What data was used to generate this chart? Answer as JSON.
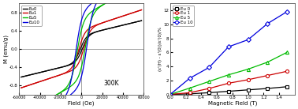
{
  "left": {
    "title": "300K",
    "xlabel": "Field (Oe)",
    "ylabel": "M (emu/g)",
    "xlim": [
      -60000,
      60000
    ],
    "ylim": [
      -1.0,
      1.0
    ],
    "xticks": [
      -60000,
      -40000,
      -20000,
      0,
      20000,
      40000,
      60000
    ],
    "xtick_labels": [
      "-60000",
      "-40000",
      "-20000",
      "0",
      "20000",
      "40000",
      "60000"
    ],
    "yticks": [
      -0.8,
      -0.4,
      0.0,
      0.4,
      0.8
    ],
    "ytick_labels": [
      "-0.8",
      "-0.4",
      "0.0",
      "0.4",
      "0.8"
    ],
    "series": [
      {
        "label": "Eu0",
        "color": "#000000",
        "slope": 5.5e-06,
        "coercivity": 1000,
        "hysteresis": 0.01,
        "sat": 0.3
      },
      {
        "label": "Eu1",
        "color": "#cc0000",
        "slope": 7.5e-06,
        "coercivity": 2500,
        "hysteresis": 0.03,
        "sat": 0.42
      },
      {
        "label": "Eu5",
        "color": "#00bb00",
        "slope": 1.3e-05,
        "coercivity": 4000,
        "hysteresis": 0.06,
        "sat": 0.7
      },
      {
        "label": "Eu10",
        "color": "#0000dd",
        "slope": 1.6e-05,
        "coercivity": 5500,
        "hysteresis": 0.09,
        "sat": 0.85
      }
    ]
  },
  "right": {
    "xlabel": "Magnetic Field (T)",
    "ylabel": "(ε'(H) - ε'(0))/ε'(0)/%",
    "xlim": [
      0.0,
      1.6
    ],
    "ylim": [
      0,
      13
    ],
    "xticks": [
      0.0,
      0.2,
      0.4,
      0.6,
      0.8,
      1.0,
      1.2,
      1.4
    ],
    "xtick_labels": [
      "0.0",
      "0.2",
      "0.4",
      "0.6",
      "0.8",
      "1.0",
      "1.2",
      "1.4"
    ],
    "yticks": [
      0,
      2,
      4,
      6,
      8,
      10,
      12
    ],
    "ytick_labels": [
      "0",
      "2",
      "4",
      "6",
      "8",
      "10",
      "12"
    ],
    "series": [
      {
        "label": "Eu 0",
        "color": "#000000",
        "marker": "s",
        "xdata": [
          0.0,
          0.25,
          0.5,
          0.75,
          1.0,
          1.25,
          1.5
        ],
        "ydata": [
          0.0,
          0.08,
          0.25,
          0.45,
          0.65,
          0.85,
          1.1
        ]
      },
      {
        "label": "Eu 1",
        "color": "#cc0000",
        "marker": "o",
        "xdata": [
          0.0,
          0.25,
          0.5,
          0.75,
          1.0,
          1.25,
          1.5
        ],
        "ydata": [
          0.0,
          0.25,
          0.85,
          1.6,
          2.1,
          2.7,
          3.3
        ]
      },
      {
        "label": "Eu 5",
        "color": "#00bb00",
        "marker": "^",
        "xdata": [
          0.0,
          0.25,
          0.5,
          0.75,
          1.0,
          1.25,
          1.5
        ],
        "ydata": [
          0.0,
          0.9,
          1.85,
          2.8,
          3.6,
          4.6,
          6.0
        ]
      },
      {
        "label": "Eu 10",
        "color": "#0000dd",
        "marker": "D",
        "xdata": [
          0.0,
          0.25,
          0.5,
          0.75,
          1.0,
          1.25,
          1.5
        ],
        "ydata": [
          0.0,
          2.3,
          3.85,
          6.8,
          7.8,
          10.1,
          11.8
        ]
      }
    ]
  },
  "bg_color": "#ffffff",
  "plot_bg": "#ffffff"
}
